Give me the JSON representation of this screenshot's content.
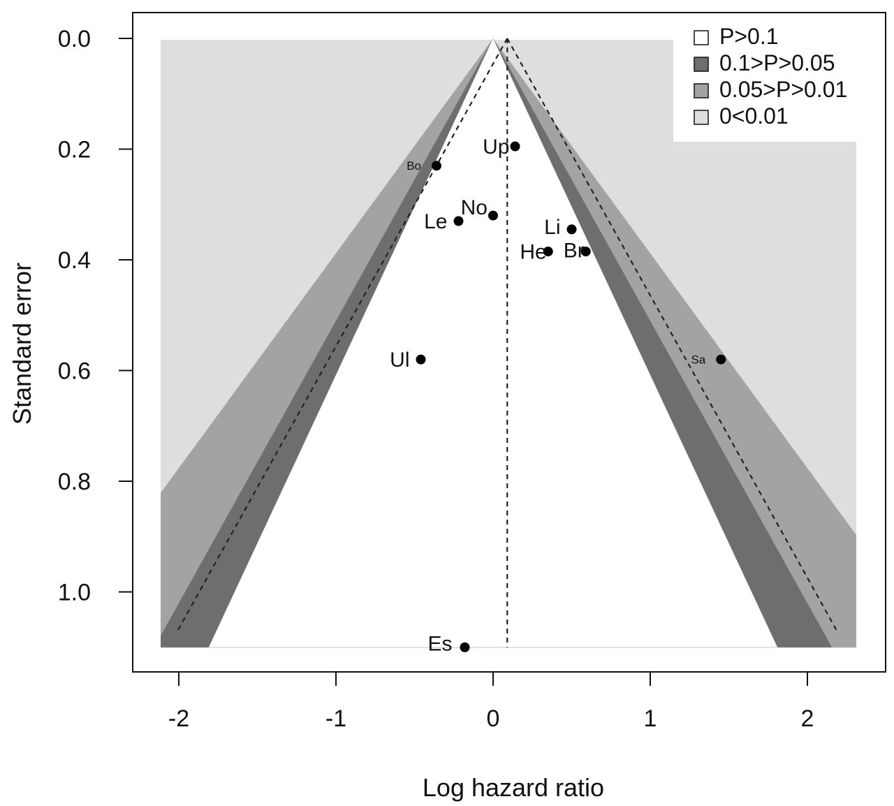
{
  "chart_data": {
    "type": "scatter",
    "subtype": "contour-enhanced funnel plot",
    "xlabel": "Log hazard ratio",
    "ylabel": "Standard error",
    "xlim": [
      -2.25,
      2.45
    ],
    "ylim": [
      0.0,
      1.1
    ],
    "y_reversed": true,
    "x_ticks": [
      -2,
      -1,
      0,
      1,
      2
    ],
    "x_tick_labels": [
      "-2",
      "-1",
      "0",
      "1",
      "2"
    ],
    "y_ticks": [
      0.0,
      0.2,
      0.4,
      0.6,
      0.8,
      1.0
    ],
    "y_tick_labels": [
      "0.0",
      "0.2",
      "0.4",
      "0.6",
      "0.8",
      "1.0"
    ],
    "pooled_estimate": 0.09,
    "funnel_center": 0.0,
    "contours": [
      {
        "label": "P>0.1",
        "z": 1.645,
        "color": "#ffffff"
      },
      {
        "label": "0.1>P>0.05",
        "z": 1.96,
        "color": "#6e6e6e"
      },
      {
        "label": "0.05>P>0.01",
        "z": 2.576,
        "color": "#a3a3a3"
      },
      {
        "label": "0<0.01",
        "z": null,
        "color": "#dedede"
      }
    ],
    "legend_placement": "top-right",
    "points": [
      {
        "label": "Up",
        "x": 0.14,
        "se": 0.195
      },
      {
        "label": "Bo",
        "x": -0.36,
        "se": 0.23
      },
      {
        "label": "No",
        "x": 0.0,
        "se": 0.32
      },
      {
        "label": "Le",
        "x": -0.22,
        "se": 0.33
      },
      {
        "label": "Li",
        "x": 0.5,
        "se": 0.345
      },
      {
        "label": "He",
        "x": 0.35,
        "se": 0.385
      },
      {
        "label": "Br",
        "x": 0.59,
        "se": 0.385
      },
      {
        "label": "Ul",
        "x": -0.46,
        "se": 0.58
      },
      {
        "label": "Sa",
        "x": 1.45,
        "se": 0.58
      },
      {
        "label": "Es",
        "x": -0.18,
        "se": 1.1
      }
    ]
  }
}
